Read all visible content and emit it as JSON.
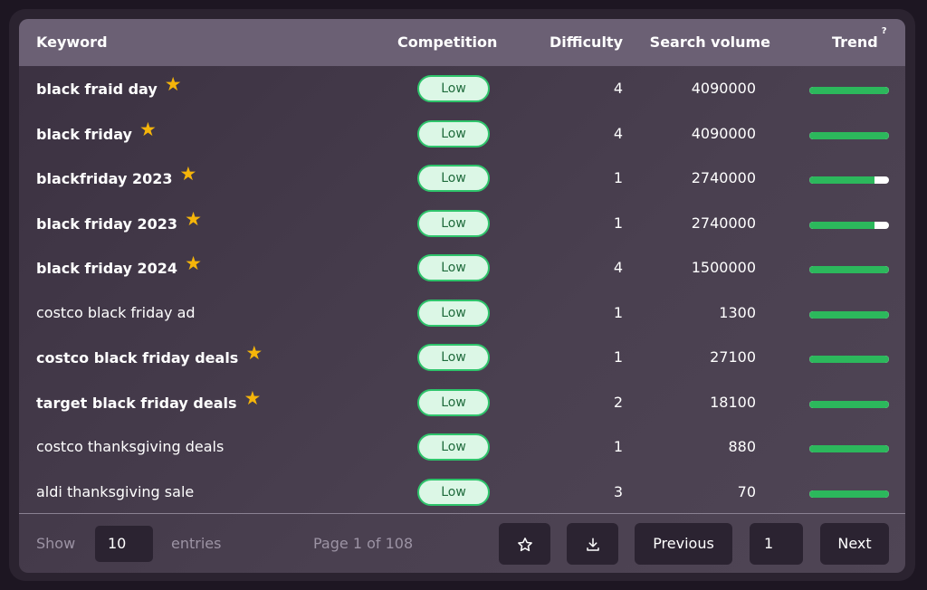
{
  "table": {
    "headers": {
      "keyword": "Keyword",
      "competition": "Competition",
      "difficulty": "Difficulty",
      "search_volume": "Search volume",
      "trend": "Trend",
      "trend_help": "?"
    },
    "rows": [
      {
        "keyword": "black fraid day",
        "starred": true,
        "competition": "Low",
        "difficulty": "4",
        "volume": "4090000",
        "trend": 1.0
      },
      {
        "keyword": "black friday",
        "starred": true,
        "competition": "Low",
        "difficulty": "4",
        "volume": "4090000",
        "trend": 1.0
      },
      {
        "keyword": "blackfriday 2023",
        "starred": true,
        "competition": "Low",
        "difficulty": "1",
        "volume": "2740000",
        "trend": 0.82
      },
      {
        "keyword": "black friday 2023",
        "starred": true,
        "competition": "Low",
        "difficulty": "1",
        "volume": "2740000",
        "trend": 0.82
      },
      {
        "keyword": "black friday 2024",
        "starred": true,
        "competition": "Low",
        "difficulty": "4",
        "volume": "1500000",
        "trend": 1.0
      },
      {
        "keyword": "costco black friday ad",
        "starred": false,
        "competition": "Low",
        "difficulty": "1",
        "volume": "1300",
        "trend": 1.0
      },
      {
        "keyword": "costco black friday deals",
        "starred": true,
        "competition": "Low",
        "difficulty": "1",
        "volume": "27100",
        "trend": 1.0
      },
      {
        "keyword": "target black friday deals",
        "starred": true,
        "competition": "Low",
        "difficulty": "2",
        "volume": "18100",
        "trend": 1.0
      },
      {
        "keyword": "costco thanksgiving deals",
        "starred": false,
        "competition": "Low",
        "difficulty": "1",
        "volume": "880",
        "trend": 1.0
      },
      {
        "keyword": "aldi thanksgiving sale",
        "starred": false,
        "competition": "Low",
        "difficulty": "3",
        "volume": "70",
        "trend": 1.0
      }
    ]
  },
  "footer": {
    "show_label": "Show",
    "entries_value": "10",
    "entries_label": "entries",
    "page_info": "Page 1 of 108",
    "favorite_icon": "star-outline-icon",
    "download_icon": "download-icon",
    "previous_label": "Previous",
    "current_page": "1",
    "next_label": "Next"
  },
  "colors": {
    "accent_green": "#2cb85c",
    "badge_bg": "#dcf7e6",
    "star": "#f5b50a",
    "header_bg": "#6b6074"
  }
}
